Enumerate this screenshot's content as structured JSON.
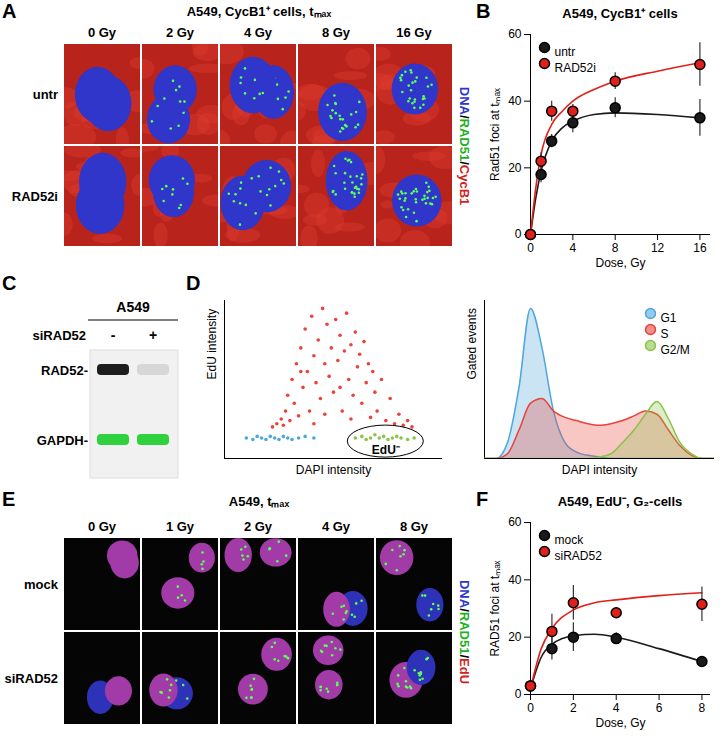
{
  "panels": [
    {
      "label": "A",
      "title": "A549, CycB1⁺ cells, tₘₐₓ",
      "columns": [
        "0 Gy",
        "2 Gy",
        "4 Gy",
        "8 Gy",
        "16 Gy"
      ],
      "rows": [
        "untr",
        "RAD52i"
      ],
      "channels": [
        {
          "text": "DNA",
          "color": "#2b35d0"
        },
        {
          "text": "/",
          "color": "#000000"
        },
        {
          "text": "RAD51",
          "color": "#22b022"
        },
        {
          "text": "/",
          "color": "#000000"
        },
        {
          "text": "CycB1",
          "color": "#d0231c"
        }
      ]
    },
    {
      "label": "C",
      "title": "A549",
      "treatment": "siRAD52",
      "lanes": [
        "-",
        "+"
      ],
      "bands": [
        {
          "name": "RAD52-",
          "color": "#1e1e1e",
          "intensity": [
            1,
            0.12
          ]
        },
        {
          "name": "GAPDH-",
          "color": "#2fd13f",
          "intensity": [
            1,
            1
          ]
        }
      ]
    },
    {
      "label": "E",
      "title": "A549, tₘₐₓ",
      "columns": [
        "0 Gy",
        "1 Gy",
        "2 Gy",
        "4 Gy",
        "8 Gy"
      ],
      "rows": [
        "mock",
        "siRAD52"
      ],
      "channels": [
        {
          "text": "DNA",
          "color": "#2b35d0"
        },
        {
          "text": "/",
          "color": "#000000"
        },
        {
          "text": "RAD51",
          "color": "#22b022"
        },
        {
          "text": "/",
          "color": "#000000"
        },
        {
          "text": "EdU",
          "color": "#d0231c"
        }
      ]
    }
  ],
  "chart_data": [
    {
      "panel": "B",
      "type": "scatter",
      "title": "A549, CycB1⁺ cells",
      "xlabel": "Dose, Gy",
      "ylabel": "Rad51 foci at tₘₐₓ",
      "x": [
        0,
        0.5,
        1,
        2,
        3,
        4,
        6,
        8,
        12,
        16
      ],
      "xlim": [
        0,
        17
      ],
      "xticks": [
        0,
        4,
        8,
        12,
        16
      ],
      "ylim": [
        0,
        60
      ],
      "yticks": [
        0,
        20,
        40,
        60
      ],
      "legend": "top-left",
      "series": [
        {
          "name": "untr",
          "color": "#1a1a1a",
          "marker": "circle",
          "values": [
            0,
            null,
            18,
            28,
            null,
            33.5,
            null,
            38,
            null,
            35
          ],
          "errors": [
            null,
            null,
            2.5,
            2,
            null,
            3,
            null,
            3,
            null,
            5.5
          ],
          "fit": [
            0,
            11,
            19,
            28,
            32,
            34,
            36,
            36.5,
            36,
            35
          ]
        },
        {
          "name": "RAD52i",
          "color": "#e0201b",
          "marker": "circle",
          "values": [
            0,
            null,
            22,
            37,
            null,
            37,
            null,
            46,
            null,
            51
          ],
          "errors": [
            null,
            null,
            2.5,
            3,
            null,
            2,
            null,
            2.5,
            null,
            6.5
          ],
          "fit": [
            0,
            14,
            24,
            33,
            37,
            40,
            43.5,
            46,
            49,
            51.5
          ]
        }
      ]
    },
    {
      "panel": "D",
      "type": "scatter",
      "xlabel": "DAPI intensity",
      "ylabel": "EdU intensity",
      "tick_labels": false,
      "xlim": [
        0,
        100
      ],
      "ylim": [
        0,
        100
      ],
      "annotations": [
        {
          "text": "EdU⁻",
          "x": 74,
          "y": 5
        }
      ],
      "series": [
        {
          "name": "G1",
          "color": "#4ea6dc",
          "x": [
            10,
            13,
            15,
            17,
            19,
            21,
            23,
            25,
            27,
            29,
            31,
            34,
            37,
            41
          ],
          "values": [
            13,
            12,
            14,
            13,
            12,
            14,
            13,
            12,
            14,
            13,
            12,
            13,
            14,
            13
          ]
        },
        {
          "name": "S",
          "color": "#e8443a",
          "x": [
            22,
            24,
            26,
            27,
            28,
            29,
            30,
            31,
            32,
            33,
            34,
            35,
            36,
            37,
            38,
            39,
            40,
            41,
            42,
            43,
            44,
            45,
            46,
            47,
            48,
            49,
            50,
            51,
            52,
            53,
            54,
            55,
            56,
            57,
            58,
            59,
            60,
            61,
            62,
            63,
            64,
            65,
            66,
            67,
            68,
            69,
            70,
            72,
            74,
            76,
            78,
            80,
            82,
            84,
            86,
            46,
            53,
            41,
            58,
            35
          ],
          "values": [
            20,
            22,
            25,
            21,
            30,
            40,
            24,
            50,
            35,
            60,
            27,
            70,
            45,
            82,
            55,
            30,
            90,
            65,
            48,
            75,
            38,
            95,
            60,
            85,
            52,
            70,
            42,
            88,
            62,
            78,
            30,
            68,
            92,
            50,
            72,
            40,
            80,
            58,
            66,
            35,
            74,
            48,
            60,
            26,
            55,
            42,
            30,
            50,
            24,
            38,
            22,
            28,
            21,
            24,
            20,
            28,
            45,
            22,
            25,
            55
          ]
        },
        {
          "name": "G2/M",
          "color": "#8bc34a",
          "x": [
            60,
            63,
            65,
            67,
            69,
            71,
            73,
            75,
            77,
            79,
            81,
            84,
            87
          ],
          "values": [
            13,
            14,
            12,
            13,
            15,
            13,
            14,
            12,
            13,
            14,
            13,
            12,
            13
          ]
        }
      ]
    },
    {
      "type": "area",
      "xlabel": "DAPI intensity",
      "ylabel": "Gated events",
      "tick_labels": false,
      "xlim": [
        0,
        100
      ],
      "ylim": [
        0,
        100
      ],
      "legend": "top-right",
      "x": [
        0,
        5,
        10,
        15,
        20,
        25,
        30,
        35,
        40,
        45,
        50,
        55,
        60,
        65,
        70,
        75,
        80,
        85,
        90,
        95,
        100
      ],
      "series": [
        {
          "name": "G1",
          "color": "#4ea6dc",
          "values": [
            0,
            0,
            10,
            45,
            95,
            70,
            30,
            10,
            4,
            2,
            1,
            0,
            0,
            0,
            0,
            0,
            0,
            0,
            0,
            0,
            0
          ]
        },
        {
          "name": "S",
          "color": "#e8443a",
          "values": [
            0,
            0,
            3,
            18,
            35,
            38,
            30,
            26,
            24,
            22,
            21,
            22,
            24,
            27,
            30,
            28,
            18,
            8,
            2,
            0,
            0
          ]
        },
        {
          "name": "G2/M",
          "color": "#8bc34a",
          "values": [
            0,
            0,
            0,
            0,
            0,
            0,
            0,
            0,
            0,
            0,
            1,
            3,
            10,
            18,
            28,
            36,
            25,
            10,
            3,
            0,
            0
          ]
        }
      ]
    },
    {
      "panel": "F",
      "type": "scatter",
      "title": "A549, EdU⁻, G₂-cells",
      "xlabel": "Dose, Gy",
      "ylabel": "RAD51 foci at tₘₐₓ",
      "x": [
        0,
        0.5,
        1,
        2,
        3,
        4,
        6,
        8
      ],
      "xlim": [
        0,
        8.4
      ],
      "xticks": [
        0,
        2,
        4,
        6,
        8
      ],
      "ylim": [
        0,
        60
      ],
      "yticks": [
        0,
        20,
        40,
        60
      ],
      "legend": "top-left",
      "series": [
        {
          "name": "mock",
          "color": "#1a1a1a",
          "marker": "circle",
          "values": [
            3,
            null,
            16,
            20,
            null,
            19.5,
            null,
            11.5
          ],
          "errors": [
            1,
            null,
            4,
            5,
            null,
            2,
            null,
            1.5
          ],
          "fit": [
            2,
            13,
            17.5,
            20.5,
            21,
            20,
            16,
            11.5
          ]
        },
        {
          "name": "siRAD52",
          "color": "#e0201b",
          "marker": "circle",
          "values": [
            3,
            null,
            22,
            32,
            null,
            28.5,
            null,
            31.5
          ],
          "errors": [
            1,
            null,
            6,
            6,
            null,
            null,
            null,
            6
          ],
          "fit": [
            2,
            16,
            23,
            29.5,
            32,
            33,
            34.5,
            35.5
          ]
        }
      ]
    }
  ]
}
